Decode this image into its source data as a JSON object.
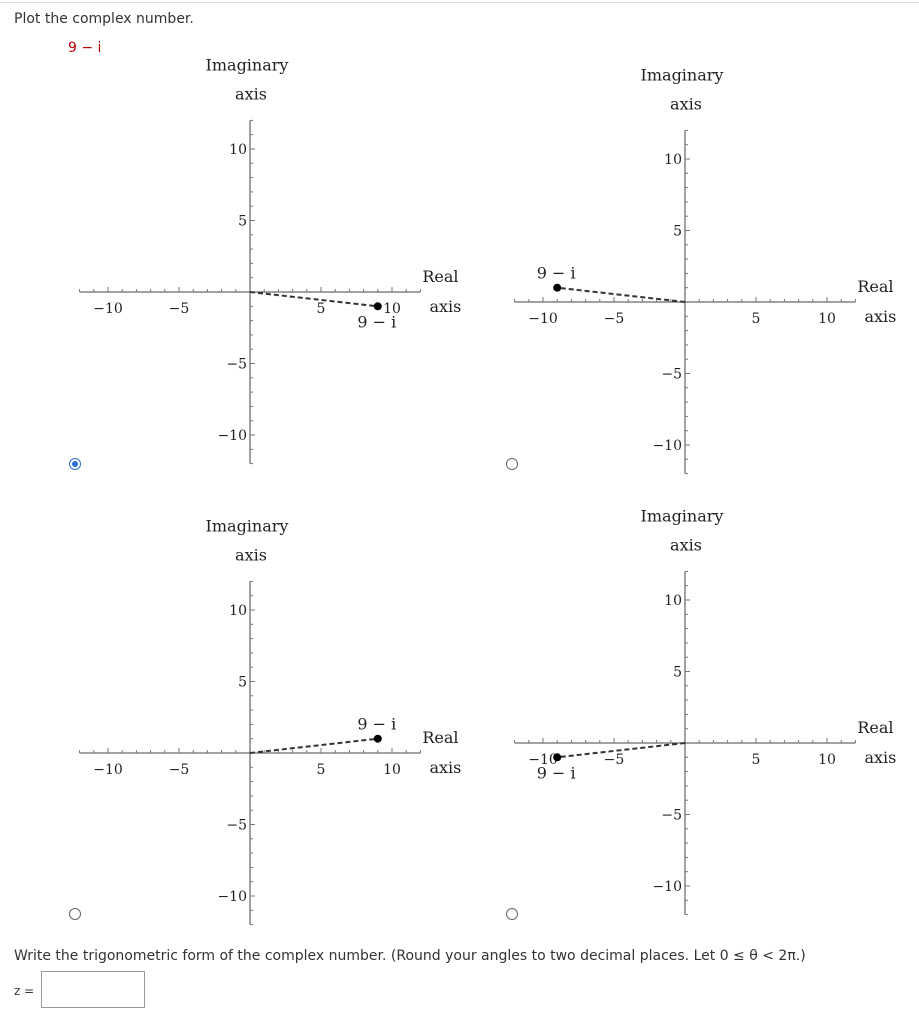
{
  "question": {
    "prompt": "Plot the complex number.",
    "number": "9 − i"
  },
  "choices": [
    {
      "selected": true
    },
    {
      "selected": false
    },
    {
      "selected": false
    },
    {
      "selected": false
    }
  ],
  "chart_data": [
    {
      "type": "scatter",
      "xlabel": [
        "Real",
        "axis"
      ],
      "ylabel": [
        "Imaginary",
        "axis"
      ],
      "xlim": [
        -12,
        12
      ],
      "ylim": [
        -12,
        12
      ],
      "x_ticks": [
        -10,
        -5,
        5,
        10
      ],
      "y_ticks": [
        10,
        5,
        -5,
        -10
      ],
      "tick_labels": {
        "x": [
          "−10",
          "−5",
          "5",
          "10"
        ],
        "y": [
          "10",
          "5",
          "−5",
          "−10"
        ]
      },
      "points": [
        {
          "x": 9,
          "y": -1,
          "label": "9 − i"
        }
      ],
      "segment_from_origin": true
    },
    {
      "type": "scatter",
      "xlabel": [
        "Real",
        "axis"
      ],
      "ylabel": [
        "Imaginary",
        "axis"
      ],
      "xlim": [
        -12,
        12
      ],
      "ylim": [
        -12,
        12
      ],
      "x_ticks": [
        -10,
        -5,
        5,
        10
      ],
      "y_ticks": [
        10,
        5,
        -5,
        -10
      ],
      "tick_labels": {
        "x": [
          "−10",
          "−5",
          "5",
          "10"
        ],
        "y": [
          "10",
          "5",
          "−5",
          "−10"
        ]
      },
      "points": [
        {
          "x": -9,
          "y": 1,
          "label": "9 − i"
        }
      ],
      "segment_from_origin": true
    },
    {
      "type": "scatter",
      "xlabel": [
        "Real",
        "axis"
      ],
      "ylabel": [
        "Imaginary",
        "axis"
      ],
      "xlim": [
        -12,
        12
      ],
      "ylim": [
        -12,
        12
      ],
      "x_ticks": [
        -10,
        -5,
        5,
        10
      ],
      "y_ticks": [
        10,
        5,
        -5,
        -10
      ],
      "tick_labels": {
        "x": [
          "−10",
          "−5",
          "5",
          "10"
        ],
        "y": [
          "10",
          "5",
          "−5",
          "−10"
        ]
      },
      "points": [
        {
          "x": 9,
          "y": 1,
          "label": "9 − i"
        }
      ],
      "segment_from_origin": true
    },
    {
      "type": "scatter",
      "xlabel": [
        "Real",
        "axis"
      ],
      "ylabel": [
        "Imaginary",
        "axis"
      ],
      "xlim": [
        -12,
        12
      ],
      "ylim": [
        -12,
        12
      ],
      "x_ticks": [
        -10,
        -5,
        5,
        10
      ],
      "y_ticks": [
        10,
        5,
        -5,
        -10
      ],
      "tick_labels": {
        "x": [
          "−10",
          "−5",
          "5",
          "10"
        ],
        "y": [
          "10",
          "5",
          "−5",
          "−10"
        ]
      },
      "points": [
        {
          "x": -9,
          "y": -1,
          "label": "9 − i"
        }
      ],
      "segment_from_origin": true
    }
  ],
  "trig": {
    "instruction": "Write the trigonometric form of the complex number. (Round your angles to two decimal places. Let 0 ≤ θ < 2π.)",
    "z_label": "z =",
    "answer_value": ""
  }
}
